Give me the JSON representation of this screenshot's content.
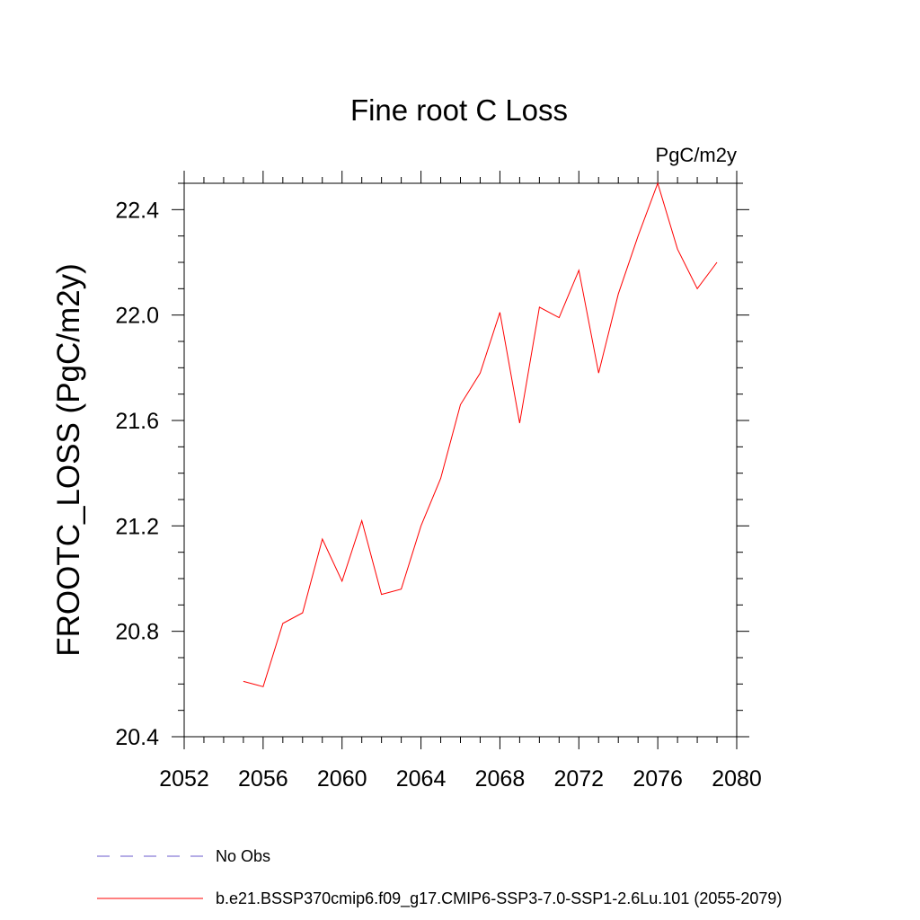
{
  "chart_data": {
    "type": "line",
    "title": "Fine root C Loss",
    "units_label": "PgC/m2y",
    "ylabel": "FROOTC_LOSS  (PgC/m2y)",
    "xlabel": "",
    "xlim": [
      2052,
      2080
    ],
    "ylim": [
      20.4,
      22.5
    ],
    "x_ticks": [
      2052,
      2056,
      2060,
      2064,
      2068,
      2072,
      2076,
      2080
    ],
    "x_tick_labels": [
      "2052",
      "2056",
      "2060",
      "2064",
      "2068",
      "2072",
      "2076",
      "2080"
    ],
    "y_ticks": [
      20.4,
      20.8,
      21.2,
      21.6,
      22.0,
      22.4
    ],
    "y_tick_labels": [
      "20.4",
      "20.8",
      "21.2",
      "21.6",
      "22.0",
      "22.4"
    ],
    "grid": false,
    "legend_position": "bottom",
    "series": [
      {
        "name": "No Obs",
        "color": "#6a5acd",
        "style": "dashed",
        "x": [],
        "y": []
      },
      {
        "name": "b.e21.BSSP370cmip6.f09_g17.CMIP6-SSP3-7.0-SSP1-2.6Lu.101 (2055-2079)",
        "color": "#ff0000",
        "style": "solid",
        "x": [
          2055,
          2056,
          2057,
          2058,
          2059,
          2060,
          2061,
          2062,
          2063,
          2064,
          2065,
          2066,
          2067,
          2068,
          2069,
          2070,
          2071,
          2072,
          2073,
          2074,
          2075,
          2076,
          2077,
          2078,
          2079
        ],
        "y": [
          20.61,
          20.59,
          20.83,
          20.87,
          21.15,
          20.99,
          21.22,
          20.94,
          20.96,
          21.2,
          21.38,
          21.66,
          21.78,
          22.01,
          21.59,
          22.03,
          21.99,
          22.17,
          21.78,
          22.08,
          22.3,
          22.5,
          22.25,
          22.1,
          22.2
        ]
      }
    ]
  }
}
